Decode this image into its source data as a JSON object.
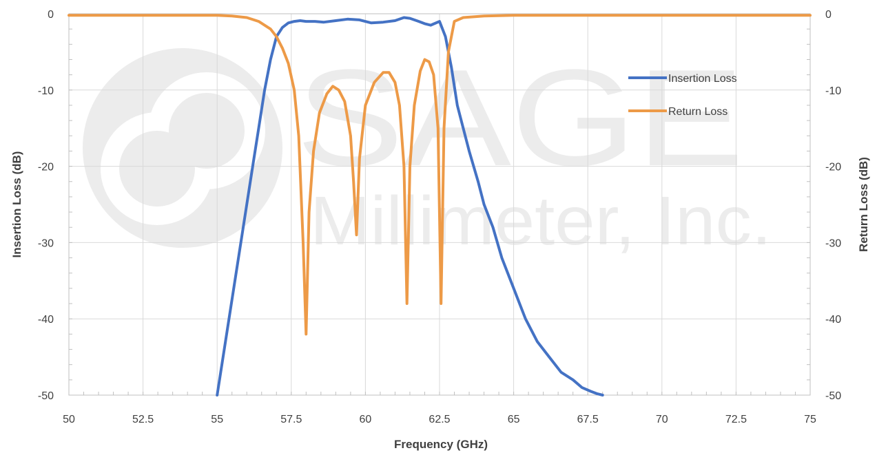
{
  "watermark": {
    "line1": "SAGE",
    "line2": "Millimeter, Inc."
  },
  "chart_data": {
    "type": "line",
    "title": "",
    "xlabel": "Frequency (GHz)",
    "ylabel_left": "Insertion Loss (dB)",
    "ylabel_right": "Return Loss (dB)",
    "xlim": [
      50,
      75
    ],
    "ylim": [
      -50,
      0
    ],
    "x_ticks": [
      "50",
      "52.5",
      "55",
      "57.5",
      "60",
      "62.5",
      "65",
      "67.5",
      "70",
      "72.5",
      "75"
    ],
    "y_ticks": [
      "0",
      "-10",
      "-20",
      "-30",
      "-40",
      "-50"
    ],
    "grid": true,
    "legend_position": "top-right",
    "series": [
      {
        "name": "Insertion Loss",
        "color": "#4472c4",
        "x": [
          55.0,
          55.2,
          55.4,
          55.6,
          55.8,
          56.0,
          56.2,
          56.4,
          56.6,
          56.8,
          57.0,
          57.2,
          57.4,
          57.6,
          57.8,
          58.0,
          58.3,
          58.6,
          59.0,
          59.4,
          59.8,
          60.2,
          60.6,
          61.0,
          61.3,
          61.5,
          61.8,
          62.0,
          62.2,
          62.5,
          62.7,
          62.9,
          63.1,
          63.3,
          63.5,
          63.8,
          64.0,
          64.3,
          64.6,
          65.0,
          65.4,
          65.8,
          66.2,
          66.6,
          67.0,
          67.3,
          67.6,
          67.8,
          68.0
        ],
        "values": [
          -50,
          -45,
          -40,
          -35,
          -30,
          -25,
          -20,
          -15,
          -10,
          -6,
          -3,
          -1.8,
          -1.2,
          -1.0,
          -0.9,
          -1.0,
          -1.0,
          -1.1,
          -0.9,
          -0.7,
          -0.8,
          -1.2,
          -1.1,
          -0.9,
          -0.5,
          -0.6,
          -1.0,
          -1.3,
          -1.5,
          -1.0,
          -3.0,
          -7.0,
          -12.0,
          -15.0,
          -18.0,
          -22.0,
          -25.0,
          -28.0,
          -32.0,
          -36.0,
          -40.0,
          -43.0,
          -45.0,
          -47.0,
          -48.0,
          -49.0,
          -49.5,
          -49.8,
          -50.0
        ]
      },
      {
        "name": "Return Loss",
        "color": "#ed9a47",
        "x": [
          50.0,
          51.0,
          52.0,
          53.0,
          54.0,
          55.0,
          55.5,
          56.0,
          56.4,
          56.8,
          57.0,
          57.2,
          57.4,
          57.6,
          57.75,
          57.9,
          58.0,
          58.1,
          58.25,
          58.45,
          58.7,
          58.9,
          59.1,
          59.3,
          59.5,
          59.6,
          59.7,
          59.8,
          60.0,
          60.3,
          60.6,
          60.8,
          61.0,
          61.15,
          61.3,
          61.4,
          61.5,
          61.65,
          61.85,
          62.0,
          62.15,
          62.3,
          62.45,
          62.55,
          62.65,
          62.8,
          63.0,
          63.3,
          64.0,
          65.0,
          67.0,
          69.0,
          71.0,
          73.0,
          75.0
        ],
        "values": [
          -0.2,
          -0.2,
          -0.2,
          -0.2,
          -0.2,
          -0.2,
          -0.3,
          -0.5,
          -1.0,
          -2.0,
          -3.0,
          -4.5,
          -6.5,
          -10.0,
          -16.0,
          -30.0,
          -42.0,
          -26.0,
          -18.0,
          -13.0,
          -10.5,
          -9.5,
          -10.0,
          -11.5,
          -16.0,
          -22.0,
          -29.0,
          -19.0,
          -12.0,
          -9.0,
          -7.7,
          -7.7,
          -9.0,
          -12.0,
          -20.0,
          -38.0,
          -20.0,
          -12.0,
          -7.5,
          -6.0,
          -6.3,
          -8.0,
          -15.0,
          -38.0,
          -15.0,
          -5.0,
          -1.0,
          -0.5,
          -0.3,
          -0.2,
          -0.2,
          -0.2,
          -0.2,
          -0.2,
          -0.2
        ]
      }
    ]
  }
}
